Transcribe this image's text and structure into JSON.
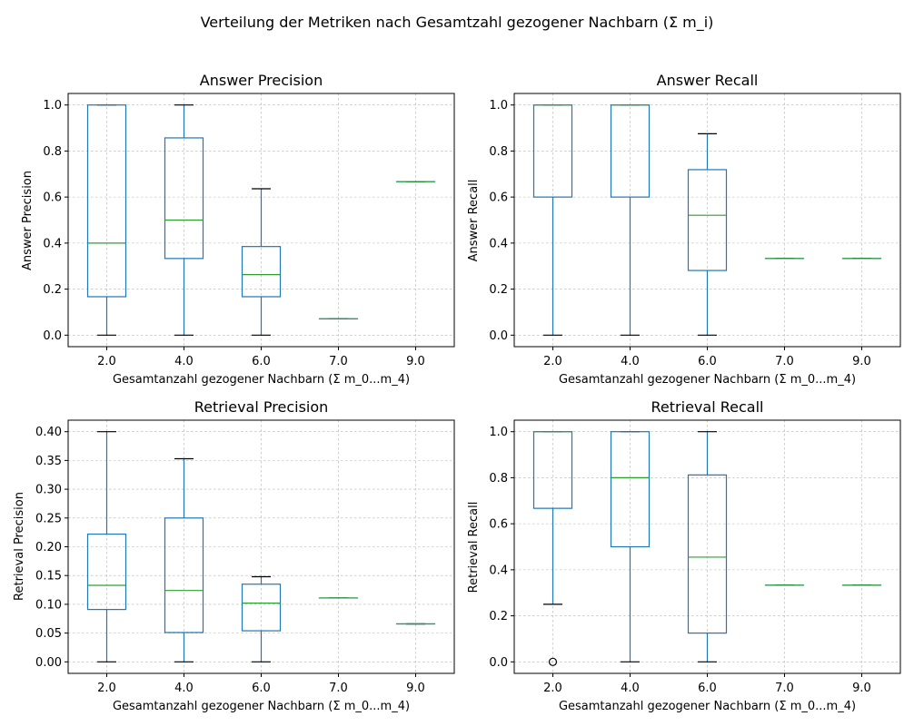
{
  "suptitle": "Verteilung der Metriken nach Gesamtzahl gezogener Nachbarn (Σ m_i)",
  "chart_data": [
    {
      "type": "box",
      "title": "Answer Precision",
      "xlabel": "Gesamtanzahl gezogener Nachbarn (Σ m_0...m_4)",
      "ylabel": "Answer Precision",
      "ylim": [
        -0.05,
        1.05
      ],
      "yticks": [
        0.0,
        0.2,
        0.4,
        0.6,
        0.8,
        1.0
      ],
      "ytick_labels": [
        "0.0",
        "0.2",
        "0.4",
        "0.6",
        "0.8",
        "1.0"
      ],
      "grid": true,
      "categories": [
        "2.0",
        "4.0",
        "6.0",
        "7.0",
        "9.0"
      ],
      "boxes": [
        {
          "whislo": 0.0,
          "q1": 0.167,
          "med": 0.4,
          "q3": 1.0,
          "whishi": 1.0,
          "fliers": []
        },
        {
          "whislo": 0.0,
          "q1": 0.333,
          "med": 0.5,
          "q3": 0.857,
          "whishi": 1.0,
          "fliers": []
        },
        {
          "whislo": 0.0,
          "q1": 0.167,
          "med": 0.263,
          "q3": 0.385,
          "whishi": 0.636,
          "fliers": []
        },
        {
          "whislo": 0.071,
          "q1": 0.071,
          "med": 0.071,
          "q3": 0.071,
          "whishi": 0.071,
          "fliers": []
        },
        {
          "whislo": 0.667,
          "q1": 0.667,
          "med": 0.667,
          "q3": 0.667,
          "whishi": 0.667,
          "fliers": []
        }
      ]
    },
    {
      "type": "box",
      "title": "Answer Recall",
      "xlabel": "Gesamtanzahl gezogener Nachbarn (Σ m_0...m_4)",
      "ylabel": "Answer Recall",
      "ylim": [
        -0.05,
        1.05
      ],
      "yticks": [
        0.0,
        0.2,
        0.4,
        0.6,
        0.8,
        1.0
      ],
      "ytick_labels": [
        "0.0",
        "0.2",
        "0.4",
        "0.6",
        "0.8",
        "1.0"
      ],
      "grid": true,
      "categories": [
        "2.0",
        "4.0",
        "6.0",
        "7.0",
        "9.0"
      ],
      "boxes": [
        {
          "whislo": 0.0,
          "q1": 0.6,
          "med": 1.0,
          "q3": 1.0,
          "whishi": 1.0,
          "fliers": []
        },
        {
          "whislo": 0.0,
          "q1": 0.6,
          "med": 1.0,
          "q3": 1.0,
          "whishi": 1.0,
          "fliers": []
        },
        {
          "whislo": 0.0,
          "q1": 0.281,
          "med": 0.521,
          "q3": 0.719,
          "whishi": 0.875,
          "fliers": []
        },
        {
          "whislo": 0.333,
          "q1": 0.333,
          "med": 0.333,
          "q3": 0.333,
          "whishi": 0.333,
          "fliers": []
        },
        {
          "whislo": 0.333,
          "q1": 0.333,
          "med": 0.333,
          "q3": 0.333,
          "whishi": 0.333,
          "fliers": []
        }
      ]
    },
    {
      "type": "box",
      "title": "Retrieval Precision",
      "xlabel": "Gesamtanzahl gezogener Nachbarn (Σ m_0...m_4)",
      "ylabel": "Retrieval Precision",
      "ylim": [
        -0.02,
        0.42
      ],
      "yticks": [
        0.0,
        0.05,
        0.1,
        0.15,
        0.2,
        0.25,
        0.3,
        0.35,
        0.4
      ],
      "ytick_labels": [
        "0.00",
        "0.05",
        "0.10",
        "0.15",
        "0.20",
        "0.25",
        "0.30",
        "0.35",
        "0.40"
      ],
      "grid": true,
      "categories": [
        "2.0",
        "4.0",
        "6.0",
        "7.0",
        "9.0"
      ],
      "boxes": [
        {
          "whislo": 0.0,
          "q1": 0.091,
          "med": 0.133,
          "q3": 0.222,
          "whishi": 0.4,
          "fliers": []
        },
        {
          "whislo": 0.0,
          "q1": 0.051,
          "med": 0.124,
          "q3": 0.25,
          "whishi": 0.353,
          "fliers": []
        },
        {
          "whislo": 0.0,
          "q1": 0.054,
          "med": 0.102,
          "q3": 0.135,
          "whishi": 0.148,
          "fliers": []
        },
        {
          "whislo": 0.111,
          "q1": 0.111,
          "med": 0.111,
          "q3": 0.111,
          "whishi": 0.111,
          "fliers": []
        },
        {
          "whislo": 0.066,
          "q1": 0.066,
          "med": 0.066,
          "q3": 0.066,
          "whishi": 0.066,
          "fliers": []
        }
      ]
    },
    {
      "type": "box",
      "title": "Retrieval Recall",
      "xlabel": "Gesamtanzahl gezogener Nachbarn (Σ m_0...m_4)",
      "ylabel": "Retrieval Recall",
      "ylim": [
        -0.05,
        1.05
      ],
      "yticks": [
        0.0,
        0.2,
        0.4,
        0.6,
        0.8,
        1.0
      ],
      "ytick_labels": [
        "0.0",
        "0.2",
        "0.4",
        "0.6",
        "0.8",
        "1.0"
      ],
      "grid": true,
      "categories": [
        "2.0",
        "4.0",
        "6.0",
        "7.0",
        "9.0"
      ],
      "boxes": [
        {
          "whislo": 0.25,
          "q1": 0.667,
          "med": 1.0,
          "q3": 1.0,
          "whishi": 1.0,
          "fliers": [
            0.0
          ]
        },
        {
          "whislo": 0.0,
          "q1": 0.5,
          "med": 0.8,
          "q3": 1.0,
          "whishi": 1.0,
          "fliers": []
        },
        {
          "whislo": 0.0,
          "q1": 0.125,
          "med": 0.455,
          "q3": 0.812,
          "whishi": 1.0,
          "fliers": []
        },
        {
          "whislo": 0.333,
          "q1": 0.333,
          "med": 0.333,
          "q3": 0.333,
          "whishi": 0.333,
          "fliers": []
        },
        {
          "whislo": 0.333,
          "q1": 0.333,
          "med": 0.333,
          "q3": 0.333,
          "whishi": 0.333,
          "fliers": []
        }
      ]
    }
  ]
}
